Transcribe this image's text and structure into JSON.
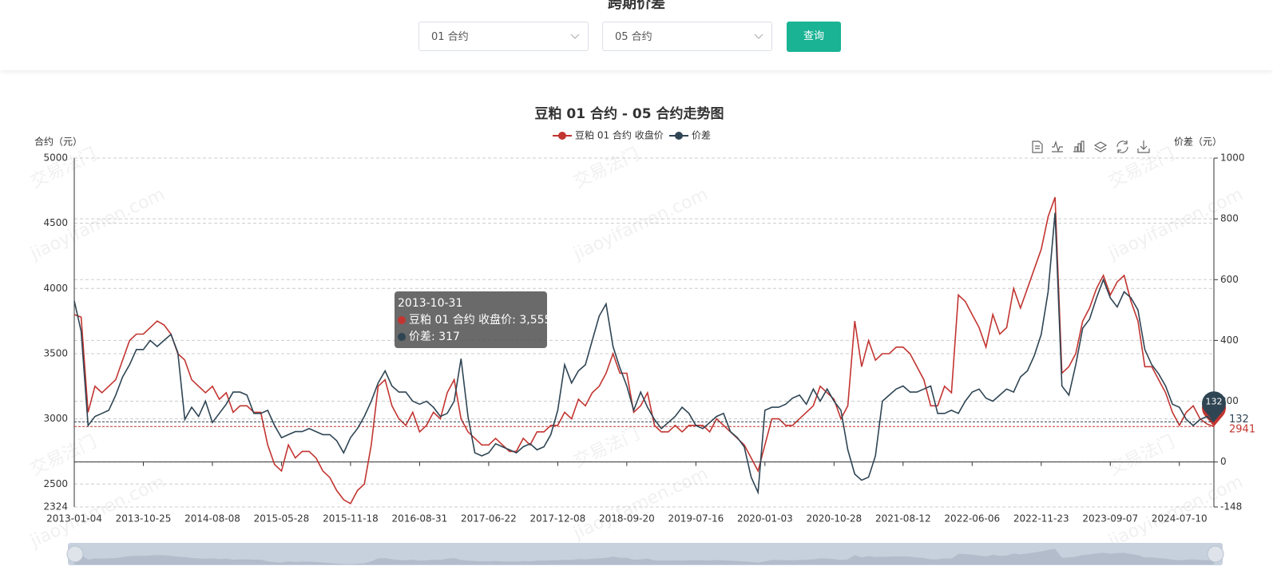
{
  "header": {
    "title": "跨期价差",
    "select1": "01 合约",
    "select2": "05 合约",
    "button": "查询"
  },
  "chart_data": {
    "type": "line",
    "title": "豆粕 01 合约 - 05 合约走势图",
    "y_label": "合约（元）",
    "y2_label": "价差（元）",
    "categories": [
      "2013-01-04",
      null,
      null,
      null,
      null,
      null,
      null,
      null,
      null,
      null,
      "2013-10-25",
      null,
      null,
      null,
      null,
      null,
      null,
      null,
      null,
      null,
      "2014-08-08",
      null,
      null,
      null,
      null,
      null,
      null,
      null,
      null,
      null,
      "2015-05-28",
      null,
      null,
      null,
      null,
      null,
      null,
      null,
      null,
      null,
      "2015-11-18",
      null,
      null,
      null,
      null,
      null,
      null,
      null,
      null,
      null,
      "2016-08-31",
      null,
      null,
      null,
      null,
      null,
      null,
      null,
      null,
      null,
      "2017-06-22",
      null,
      null,
      null,
      null,
      null,
      null,
      null,
      null,
      null,
      "2017-12-08",
      null,
      null,
      null,
      null,
      null,
      null,
      null,
      null,
      null,
      "2018-09-20",
      null,
      null,
      null,
      null,
      null,
      null,
      null,
      null,
      null,
      "2019-07-16",
      null,
      null,
      null,
      null,
      null,
      null,
      null,
      null,
      null,
      "2020-01-03",
      null,
      null,
      null,
      null,
      null,
      null,
      null,
      null,
      null,
      "2020-10-28",
      null,
      null,
      null,
      null,
      null,
      null,
      null,
      null,
      null,
      "2021-08-12",
      null,
      null,
      null,
      null,
      null,
      null,
      null,
      null,
      null,
      "2022-06-06",
      null,
      null,
      null,
      null,
      null,
      null,
      null,
      null,
      null,
      "2022-11-23",
      null,
      null,
      null,
      null,
      null,
      null,
      null,
      null,
      null,
      "2023-09-07",
      null,
      null,
      null,
      null,
      null,
      null,
      null,
      null,
      null,
      "2024-07-10",
      null,
      null,
      null,
      null,
      null
    ],
    "series": [
      {
        "name": "豆粕 01 合约 收盘价",
        "color": "#c23531",
        "values": [
          3800,
          3780,
          3050,
          3250,
          3200,
          3250,
          3300,
          3450,
          3600,
          3650,
          3650,
          3700,
          3750,
          3720,
          3650,
          3500,
          3450,
          3300,
          3250,
          3200,
          3250,
          3150,
          3200,
          3050,
          3100,
          3100,
          3050,
          3050,
          2800,
          2650,
          2600,
          2800,
          2700,
          2750,
          2750,
          2700,
          2600,
          2550,
          2450,
          2380,
          2350,
          2450,
          2500,
          2800,
          3250,
          3300,
          3100,
          3000,
          2950,
          3050,
          2900,
          2950,
          3050,
          3000,
          3200,
          3300,
          3000,
          2900,
          2850,
          2800,
          2800,
          2850,
          2800,
          2750,
          2750,
          2850,
          2800,
          2900,
          2900,
          2950,
          2950,
          3050,
          3000,
          3150,
          3100,
          3200,
          3250,
          3350,
          3500,
          3350,
          3350,
          3050,
          3100,
          3200,
          2950,
          2900,
          2900,
          2950,
          2900,
          2950,
          2950,
          2950,
          2900,
          3000,
          2950,
          2900,
          2850,
          2800,
          2700,
          2600,
          2800,
          3000,
          3000,
          2950,
          2950,
          3000,
          3050,
          3100,
          3250,
          3200,
          3150,
          3000,
          3100,
          3750,
          3400,
          3600,
          3450,
          3500,
          3500,
          3550,
          3550,
          3500,
          3400,
          3300,
          3100,
          3100,
          3250,
          3200,
          3950,
          3900,
          3800,
          3700,
          3550,
          3800,
          3650,
          3700,
          4000,
          3850,
          4000,
          4150,
          4300,
          4550,
          4700,
          3350,
          3400,
          3500,
          3750,
          3850,
          4000,
          4100,
          3950,
          4050,
          4100,
          3900,
          3750,
          3400,
          3400,
          3300,
          3200,
          3050,
          2950,
          3050,
          3100,
          3000,
          2960,
          2941
        ]
      },
      {
        "name": "价差",
        "color": "#2f4554",
        "axis": "y2",
        "values": [
          530,
          430,
          120,
          150,
          160,
          170,
          220,
          280,
          320,
          370,
          370,
          400,
          380,
          400,
          420,
          360,
          140,
          180,
          150,
          200,
          130,
          160,
          190,
          230,
          230,
          220,
          160,
          160,
          170,
          120,
          80,
          90,
          100,
          100,
          110,
          100,
          90,
          90,
          70,
          30,
          80,
          110,
          150,
          200,
          260,
          300,
          250,
          230,
          230,
          200,
          190,
          200,
          180,
          150,
          160,
          200,
          340,
          150,
          30,
          20,
          30,
          60,
          50,
          40,
          30,
          50,
          60,
          40,
          50,
          90,
          170,
          320,
          260,
          300,
          320,
          400,
          480,
          520,
          380,
          310,
          250,
          170,
          230,
          180,
          140,
          110,
          130,
          150,
          180,
          160,
          120,
          110,
          130,
          150,
          160,
          100,
          80,
          50,
          -50,
          -100,
          170,
          180,
          180,
          190,
          210,
          220,
          190,
          240,
          200,
          240,
          200,
          170,
          40,
          -40,
          -60,
          -50,
          20,
          200,
          220,
          240,
          250,
          230,
          230,
          240,
          250,
          160,
          160,
          170,
          160,
          200,
          230,
          240,
          210,
          200,
          220,
          240,
          230,
          280,
          300,
          350,
          420,
          560,
          820,
          250,
          220,
          320,
          440,
          470,
          540,
          600,
          540,
          510,
          560,
          540,
          500,
          370,
          320,
          290,
          250,
          190,
          180,
          140,
          120,
          140,
          150,
          132
        ]
      }
    ],
    "ylim": [
      2324,
      5000
    ],
    "yticks": [
      2324,
      2500,
      3000,
      3500,
      4000,
      4500,
      5000
    ],
    "y2lim": [
      -148,
      1000
    ],
    "y2ticks": [
      -148,
      0,
      200,
      400,
      600,
      800,
      1000
    ],
    "grid": true,
    "legend": "top",
    "tooltip": {
      "title": "2013-10-31",
      "rows": [
        "豆粕 01 合约 收盘价: 3,555",
        "价差: 317"
      ]
    },
    "watermark": [
      "交易法门",
      "jiaoyifamen.com"
    ]
  }
}
